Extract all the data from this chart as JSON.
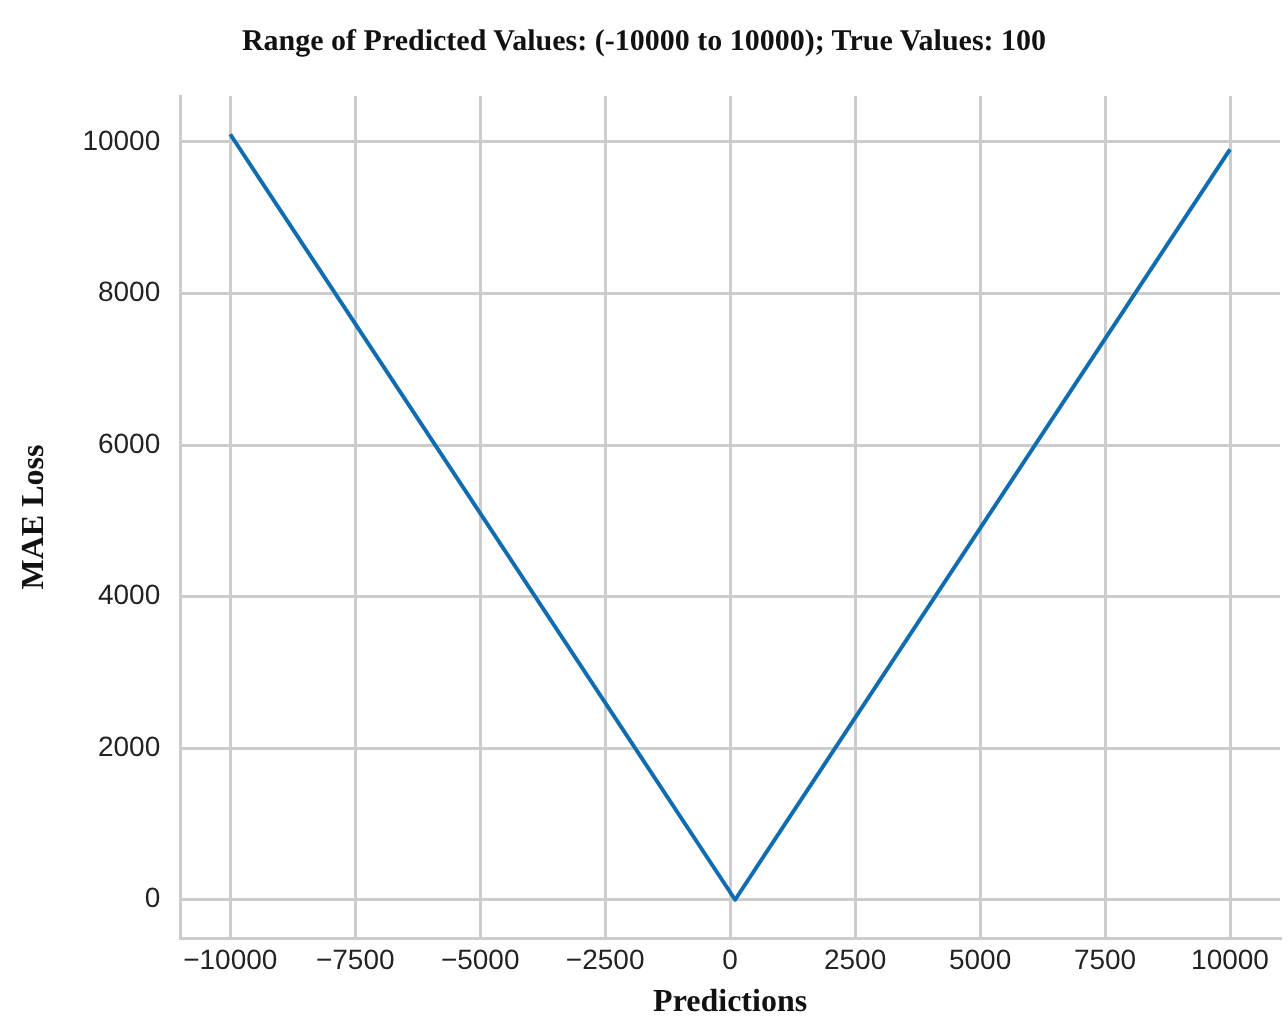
{
  "chart_data": {
    "type": "line",
    "title": "Range of Predicted Values: (-10000 to 10000); True Values: 100",
    "xlabel": "Predictions",
    "ylabel": "MAE Loss",
    "x": [
      -10000,
      100,
      10000
    ],
    "series": [
      {
        "color": "#0f6cb0",
        "values": [
          10100,
          0,
          9900
        ]
      }
    ],
    "xlim": [
      -11000,
      11000
    ],
    "xticks": [
      {
        "value": -10000,
        "label": "−10000"
      },
      {
        "value": -7500,
        "label": "−7500"
      },
      {
        "value": -5000,
        "label": "−5000"
      },
      {
        "value": -2500,
        "label": "−2500"
      },
      0,
      2500,
      5000,
      7500,
      10000
    ],
    "ylim": [
      -505,
      10605
    ],
    "yticks": [
      0,
      2000,
      4000,
      6000,
      8000,
      10000
    ],
    "grid": true,
    "legend": false,
    "marker": "none",
    "line_style": "solid"
  }
}
